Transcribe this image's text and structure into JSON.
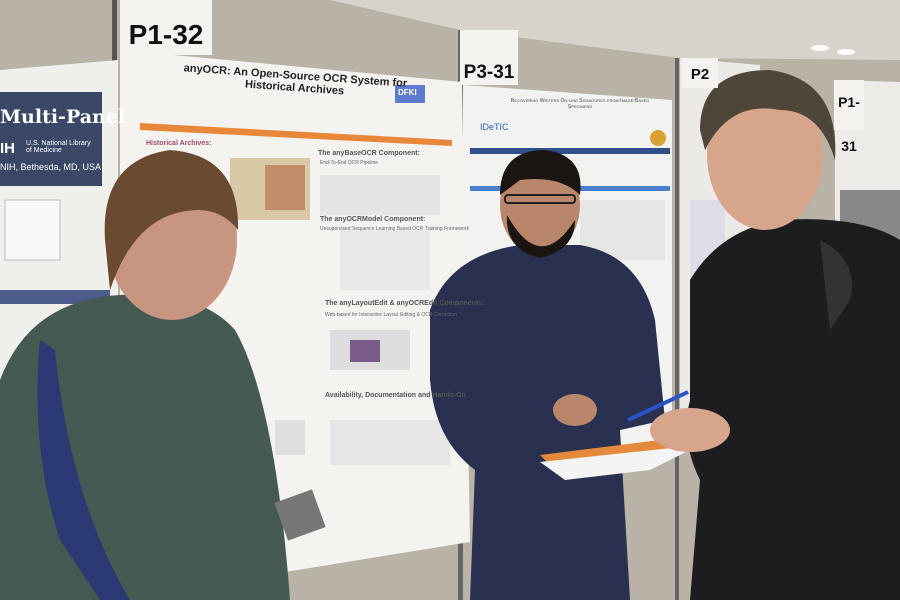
{
  "board_labels": {
    "p1_32": "P1-32",
    "p3_31": "P3-31",
    "p2": "P2",
    "p1_31": "P1-31"
  },
  "left_poster": {
    "title": "Multi-Panel",
    "org": "U.S. National Library of Medicine",
    "logo_text": "IH",
    "location": "NIH, Bethesda, MD, USA"
  },
  "center_poster": {
    "title": "anyOCR: An Open-Source OCR System for Historical Archives",
    "logo_text": "DFKI",
    "sections": [
      "Historical Archives:",
      "The anyBaseOCR Component:",
      "End-To-End OCR Pipeline",
      "The anyOCRModel Component:",
      "Unsupervised Sequence Learning Based OCR Training Framework",
      "The anyLayoutEdit & anyOCREdit Components:",
      "Web-based for Interactive Layout Editing & OCR Correction",
      "Availability, Documentation and Hands-On"
    ],
    "accent_color": "#e8873a"
  },
  "right_poster": {
    "title": "Recovering Writers On-line Signatures from Image-Based Specimens",
    "logo_text": "IDeTIC",
    "accent_color": "#2f62b8"
  },
  "colors": {
    "wall": "#b9b2a6",
    "green_shirt": "#445a52",
    "navy_shirt": "#2a3150",
    "black_sweater": "#1d1d1f"
  }
}
